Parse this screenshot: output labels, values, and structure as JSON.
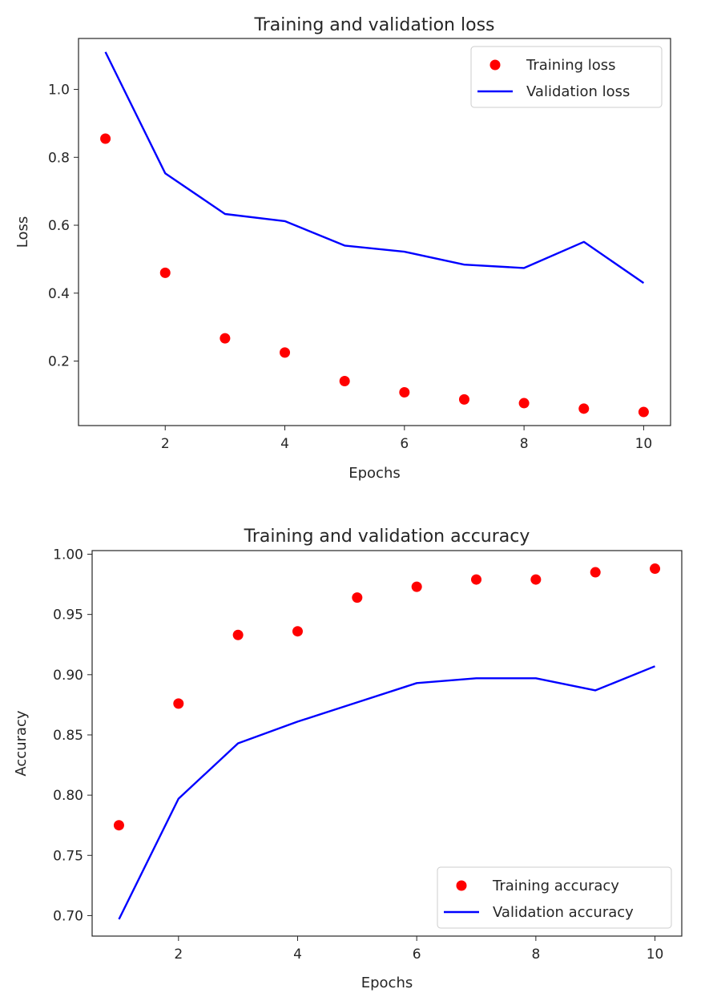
{
  "colors": {
    "training": "#ff0000",
    "validation": "#0000ff",
    "axis": "#262626",
    "legend_border": "#cccccc"
  },
  "chart_data": [
    {
      "type": "line",
      "title": "Training and validation loss",
      "xlabel": "Epochs",
      "ylabel": "Loss",
      "xlim": [
        0.55,
        10.45
      ],
      "ylim": [
        0.01,
        1.15
      ],
      "xticks": [
        2,
        4,
        6,
        8,
        10
      ],
      "yticks": [
        0.2,
        0.4,
        0.6,
        0.8,
        1.0
      ],
      "ytick_labels": [
        "0.2",
        "0.4",
        "0.6",
        "0.8",
        "1.0"
      ],
      "grid": false,
      "legend_position": "top-right",
      "x": [
        1,
        2,
        3,
        4,
        5,
        6,
        7,
        8,
        9,
        10
      ],
      "series": [
        {
          "name": "Training loss",
          "style": "markers",
          "color": "#ff0000",
          "values": [
            0.855,
            0.46,
            0.267,
            0.225,
            0.141,
            0.108,
            0.087,
            0.076,
            0.06,
            0.05
          ]
        },
        {
          "name": "Validation loss",
          "style": "line",
          "color": "#0000ff",
          "values": [
            1.11,
            0.753,
            0.633,
            0.612,
            0.54,
            0.522,
            0.484,
            0.474,
            0.551,
            0.43
          ]
        }
      ]
    },
    {
      "type": "line",
      "title": "Training and validation accuracy",
      "xlabel": "Epochs",
      "ylabel": "Accuracy",
      "xlim": [
        0.55,
        10.45
      ],
      "ylim": [
        0.683,
        1.003
      ],
      "xticks": [
        2,
        4,
        6,
        8,
        10
      ],
      "yticks": [
        0.7,
        0.75,
        0.8,
        0.85,
        0.9,
        0.95,
        1.0
      ],
      "ytick_labels": [
        "0.70",
        "0.75",
        "0.80",
        "0.85",
        "0.90",
        "0.95",
        "1.00"
      ],
      "grid": false,
      "legend_position": "bottom-right",
      "x": [
        1,
        2,
        3,
        4,
        5,
        6,
        7,
        8,
        9,
        10
      ],
      "series": [
        {
          "name": "Training accuracy",
          "style": "markers",
          "color": "#ff0000",
          "values": [
            0.775,
            0.876,
            0.933,
            0.936,
            0.964,
            0.973,
            0.979,
            0.979,
            0.985,
            0.988
          ]
        },
        {
          "name": "Validation accuracy",
          "style": "line",
          "color": "#0000ff",
          "values": [
            0.697,
            0.797,
            0.843,
            0.861,
            0.877,
            0.893,
            0.897,
            0.897,
            0.887,
            0.907
          ]
        }
      ]
    }
  ]
}
